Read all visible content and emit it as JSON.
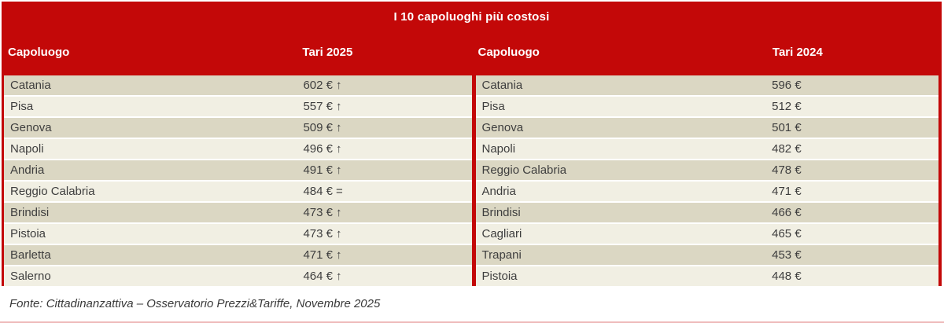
{
  "chart_data": {
    "type": "table",
    "title": "I 10 capoluoghi più costosi",
    "source": "Fonte: Cittadinanzattiva – Osservatorio Prezzi&Tariffe, Novembre 2025",
    "tables": [
      {
        "name_header": "Capoluogo",
        "value_header": "Tari 2025",
        "rows": [
          {
            "city": "Catania",
            "amount": "602 €",
            "trend": "↑",
            "value": 602
          },
          {
            "city": "Pisa",
            "amount": "557 €",
            "trend": "↑",
            "value": 557
          },
          {
            "city": "Genova",
            "amount": "509 €",
            "trend": "↑",
            "value": 509
          },
          {
            "city": "Napoli",
            "amount": "496 €",
            "trend": "↑",
            "value": 496
          },
          {
            "city": "Andria",
            "amount": "491 €",
            "trend": "↑",
            "value": 491
          },
          {
            "city": "Reggio Calabria",
            "amount": "484 €",
            "trend": "=",
            "value": 484
          },
          {
            "city": "Brindisi",
            "amount": "473 €",
            "trend": "↑",
            "value": 473
          },
          {
            "city": "Pistoia",
            "amount": "473 €",
            "trend": "↑",
            "value": 473
          },
          {
            "city": "Barletta",
            "amount": "471 €",
            "trend": "↑",
            "value": 471
          },
          {
            "city": "Salerno",
            "amount": "464 €",
            "trend": "↑",
            "value": 464
          }
        ]
      },
      {
        "name_header": "Capoluogo",
        "value_header": "Tari 2024",
        "rows": [
          {
            "city": "Catania",
            "amount": "596 €",
            "trend": "",
            "value": 596
          },
          {
            "city": "Pisa",
            "amount": "512 €",
            "trend": "",
            "value": 512
          },
          {
            "city": "Genova",
            "amount": "501 €",
            "trend": "",
            "value": 501
          },
          {
            "city": "Napoli",
            "amount": "482 €",
            "trend": "",
            "value": 482
          },
          {
            "city": "Reggio Calabria",
            "amount": "478 €",
            "trend": "",
            "value": 478
          },
          {
            "city": "Andria",
            "amount": "471 €",
            "trend": "",
            "value": 471
          },
          {
            "city": "Brindisi",
            "amount": "466 €",
            "trend": "",
            "value": 466
          },
          {
            "city": "Cagliari",
            "amount": "465 €",
            "trend": "",
            "value": 465
          },
          {
            "city": "Trapani",
            "amount": "453 €",
            "trend": "",
            "value": 453
          },
          {
            "city": "Pistoia",
            "amount": "448 €",
            "trend": "",
            "value": 448
          }
        ]
      }
    ]
  },
  "colors": {
    "accent_red": "#c30808",
    "row_dark": "#dbd7c3",
    "row_light": "#f1efe3",
    "header_text": "#ffffff",
    "body_text": "#3e3e3e"
  }
}
